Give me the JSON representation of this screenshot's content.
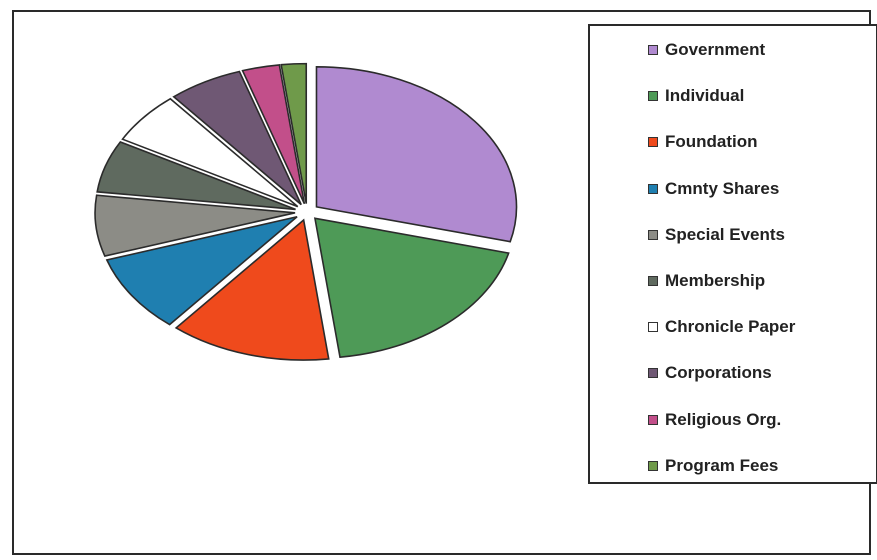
{
  "chart_data": {
    "type": "pie",
    "title": "",
    "legend_position": "right",
    "series": [
      {
        "name": "Government",
        "value": 29,
        "color": "#b08ad0"
      },
      {
        "name": "Individual",
        "value": 19,
        "color": "#4e9a57"
      },
      {
        "name": "Foundation",
        "value": 13,
        "color": "#ef4a1c"
      },
      {
        "name": "Cmnty Shares",
        "value": 9,
        "color": "#1f7fb0"
      },
      {
        "name": "Special Events",
        "value": 7,
        "color": "#8c8c86"
      },
      {
        "name": "Membership",
        "value": 6,
        "color": "#5f6a5f"
      },
      {
        "name": "Chronicle Paper",
        "value": 6,
        "color": "#ffffff"
      },
      {
        "name": "Corporations",
        "value": 6,
        "color": "#6f5874"
      },
      {
        "name": "Religious Org.",
        "value": 3,
        "color": "#c24f8a"
      },
      {
        "name": "Program Fees",
        "value": 2,
        "color": "#6f9a4a"
      }
    ]
  }
}
